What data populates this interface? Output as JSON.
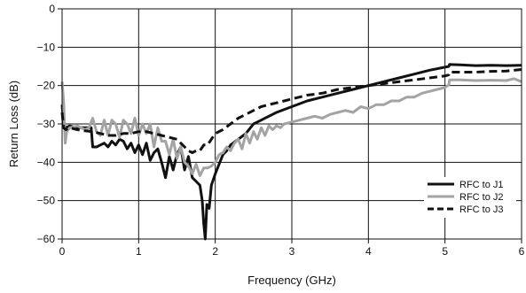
{
  "chart_data": {
    "type": "line",
    "title": "",
    "xlabel": "Frequency (GHz)",
    "ylabel": "Return Loss (dB)",
    "xlim": [
      0,
      6
    ],
    "ylim": [
      -60,
      0
    ],
    "x_ticks": [
      0,
      1,
      2,
      3,
      4,
      5,
      6
    ],
    "y_ticks": [
      0,
      -10,
      -20,
      -30,
      -40,
      -50,
      -60
    ],
    "grid": true,
    "legend_position": "bottom-right",
    "series": [
      {
        "name": "RFC to J1",
        "color": "#111111",
        "style": "solid",
        "points": [
          [
            0.0,
            -25
          ],
          [
            0.02,
            -30
          ],
          [
            0.05,
            -31
          ],
          [
            0.1,
            -30.5
          ],
          [
            0.2,
            -31
          ],
          [
            0.3,
            -31
          ],
          [
            0.38,
            -31
          ],
          [
            0.4,
            -36
          ],
          [
            0.45,
            -36
          ],
          [
            0.5,
            -35.5
          ],
          [
            0.55,
            -35
          ],
          [
            0.6,
            -36
          ],
          [
            0.65,
            -34.5
          ],
          [
            0.7,
            -35.5
          ],
          [
            0.75,
            -34
          ],
          [
            0.8,
            -34.5
          ],
          [
            0.85,
            -36.5
          ],
          [
            0.9,
            -35
          ],
          [
            0.95,
            -37.5
          ],
          [
            1.0,
            -35.5
          ],
          [
            1.05,
            -38
          ],
          [
            1.1,
            -35
          ],
          [
            1.15,
            -39.5
          ],
          [
            1.2,
            -37.5
          ],
          [
            1.25,
            -36.5
          ],
          [
            1.3,
            -40
          ],
          [
            1.35,
            -44
          ],
          [
            1.4,
            -38.5
          ],
          [
            1.45,
            -42
          ],
          [
            1.5,
            -38
          ],
          [
            1.55,
            -36
          ],
          [
            1.6,
            -42
          ],
          [
            1.65,
            -38.5
          ],
          [
            1.7,
            -44
          ],
          [
            1.75,
            -45
          ],
          [
            1.8,
            -46
          ],
          [
            1.83,
            -50
          ],
          [
            1.85,
            -56
          ],
          [
            1.87,
            -60
          ],
          [
            1.89,
            -51
          ],
          [
            1.92,
            -52
          ],
          [
            1.95,
            -46
          ],
          [
            2.0,
            -43
          ],
          [
            2.05,
            -40.5
          ],
          [
            2.1,
            -38
          ],
          [
            2.15,
            -37
          ],
          [
            2.2,
            -35.5
          ],
          [
            2.3,
            -34
          ],
          [
            2.4,
            -32.5
          ],
          [
            2.5,
            -30
          ],
          [
            2.6,
            -29
          ],
          [
            2.7,
            -28
          ],
          [
            2.8,
            -27
          ],
          [
            3.0,
            -25.5
          ],
          [
            3.2,
            -24
          ],
          [
            3.4,
            -23
          ],
          [
            3.6,
            -22
          ],
          [
            3.8,
            -21
          ],
          [
            4.0,
            -20
          ],
          [
            4.2,
            -19
          ],
          [
            4.4,
            -18
          ],
          [
            4.6,
            -17
          ],
          [
            4.8,
            -16
          ],
          [
            5.05,
            -15
          ],
          [
            5.06,
            -14.5
          ],
          [
            5.2,
            -14.6
          ],
          [
            5.4,
            -14.8
          ],
          [
            5.6,
            -14.7
          ],
          [
            5.8,
            -14.8
          ],
          [
            6.0,
            -14.7
          ]
        ]
      },
      {
        "name": "RFC to J2",
        "color": "#a3a3a3",
        "style": "solid",
        "points": [
          [
            0.0,
            -19
          ],
          [
            0.02,
            -24
          ],
          [
            0.04,
            -35
          ],
          [
            0.06,
            -32
          ],
          [
            0.1,
            -31
          ],
          [
            0.2,
            -30.5
          ],
          [
            0.3,
            -31.5
          ],
          [
            0.35,
            -31
          ],
          [
            0.4,
            -28.5
          ],
          [
            0.45,
            -32
          ],
          [
            0.5,
            -33
          ],
          [
            0.55,
            -29
          ],
          [
            0.6,
            -33
          ],
          [
            0.65,
            -29
          ],
          [
            0.7,
            -30
          ],
          [
            0.75,
            -33.5
          ],
          [
            0.8,
            -29
          ],
          [
            0.85,
            -30
          ],
          [
            0.9,
            -32.5
          ],
          [
            0.95,
            -28.5
          ],
          [
            1.0,
            -33
          ],
          [
            1.05,
            -30
          ],
          [
            1.1,
            -32.5
          ],
          [
            1.15,
            -30
          ],
          [
            1.2,
            -36
          ],
          [
            1.25,
            -31
          ],
          [
            1.3,
            -34.5
          ],
          [
            1.35,
            -34.5
          ],
          [
            1.4,
            -38
          ],
          [
            1.45,
            -34
          ],
          [
            1.5,
            -39
          ],
          [
            1.55,
            -36
          ],
          [
            1.6,
            -40
          ],
          [
            1.65,
            -41
          ],
          [
            1.7,
            -43
          ],
          [
            1.75,
            -40.5
          ],
          [
            1.8,
            -43.5
          ],
          [
            1.85,
            -41.5
          ],
          [
            1.9,
            -41.5
          ],
          [
            1.95,
            -41
          ],
          [
            2.0,
            -40
          ],
          [
            2.05,
            -38
          ],
          [
            2.1,
            -37.5
          ],
          [
            2.15,
            -36
          ],
          [
            2.2,
            -37
          ],
          [
            2.25,
            -35
          ],
          [
            2.3,
            -34
          ],
          [
            2.35,
            -36.5
          ],
          [
            2.4,
            -32.5
          ],
          [
            2.45,
            -35
          ],
          [
            2.5,
            -32
          ],
          [
            2.55,
            -34
          ],
          [
            2.6,
            -31
          ],
          [
            2.65,
            -33
          ],
          [
            2.7,
            -30.5
          ],
          [
            2.75,
            -31.5
          ],
          [
            2.8,
            -30.5
          ],
          [
            2.85,
            -31
          ],
          [
            2.9,
            -30
          ],
          [
            3.0,
            -29.5
          ],
          [
            3.1,
            -29
          ],
          [
            3.2,
            -28.5
          ],
          [
            3.3,
            -28
          ],
          [
            3.4,
            -28.5
          ],
          [
            3.5,
            -27.5
          ],
          [
            3.6,
            -27
          ],
          [
            3.7,
            -26.5
          ],
          [
            3.8,
            -27
          ],
          [
            3.9,
            -25.5
          ],
          [
            4.0,
            -26
          ],
          [
            4.1,
            -25
          ],
          [
            4.2,
            -25
          ],
          [
            4.3,
            -24
          ],
          [
            4.4,
            -24
          ],
          [
            4.5,
            -23
          ],
          [
            4.6,
            -23
          ],
          [
            4.7,
            -22
          ],
          [
            4.8,
            -21.5
          ],
          [
            4.9,
            -21
          ],
          [
            5.0,
            -20.5
          ],
          [
            5.05,
            -19.8
          ],
          [
            5.06,
            -18.5
          ],
          [
            5.2,
            -18.5
          ],
          [
            5.4,
            -18.7
          ],
          [
            5.6,
            -18.6
          ],
          [
            5.8,
            -18.7
          ],
          [
            5.9,
            -18.2
          ],
          [
            6.0,
            -19
          ]
        ]
      },
      {
        "name": "RFC to J3",
        "color": "#111111",
        "style": "dashed",
        "points": [
          [
            0.0,
            -27
          ],
          [
            0.02,
            -31
          ],
          [
            0.05,
            -31.5
          ],
          [
            0.1,
            -31
          ],
          [
            0.2,
            -31.5
          ],
          [
            0.3,
            -31.8
          ],
          [
            0.4,
            -32
          ],
          [
            0.5,
            -32.5
          ],
          [
            0.6,
            -33
          ],
          [
            0.7,
            -33
          ],
          [
            0.8,
            -32.5
          ],
          [
            0.9,
            -32.5
          ],
          [
            1.0,
            -32
          ],
          [
            1.1,
            -32
          ],
          [
            1.2,
            -32.5
          ],
          [
            1.3,
            -33
          ],
          [
            1.4,
            -33.5
          ],
          [
            1.5,
            -34
          ],
          [
            1.55,
            -35
          ],
          [
            1.6,
            -36
          ],
          [
            1.65,
            -37
          ],
          [
            1.7,
            -37.5
          ],
          [
            1.75,
            -37
          ],
          [
            1.8,
            -37
          ],
          [
            1.85,
            -35.5
          ],
          [
            1.9,
            -35.5
          ],
          [
            1.95,
            -34
          ],
          [
            2.0,
            -32.5
          ],
          [
            2.1,
            -31.5
          ],
          [
            2.2,
            -30
          ],
          [
            2.3,
            -28.5
          ],
          [
            2.4,
            -27.5
          ],
          [
            2.5,
            -26.5
          ],
          [
            2.6,
            -25.5
          ],
          [
            2.7,
            -25
          ],
          [
            2.8,
            -24.5
          ],
          [
            3.0,
            -23.5
          ],
          [
            3.2,
            -22.5
          ],
          [
            3.4,
            -22
          ],
          [
            3.6,
            -21
          ],
          [
            3.8,
            -20.5
          ],
          [
            4.0,
            -20
          ],
          [
            4.2,
            -19.5
          ],
          [
            4.4,
            -19
          ],
          [
            4.6,
            -18.5
          ],
          [
            4.8,
            -18
          ],
          [
            5.0,
            -17.5
          ],
          [
            5.05,
            -17.2
          ],
          [
            5.06,
            -16.5
          ],
          [
            5.2,
            -16.5
          ],
          [
            5.4,
            -16.5
          ],
          [
            5.6,
            -16.3
          ],
          [
            5.8,
            -16.2
          ],
          [
            6.0,
            -15.8
          ]
        ]
      }
    ]
  }
}
